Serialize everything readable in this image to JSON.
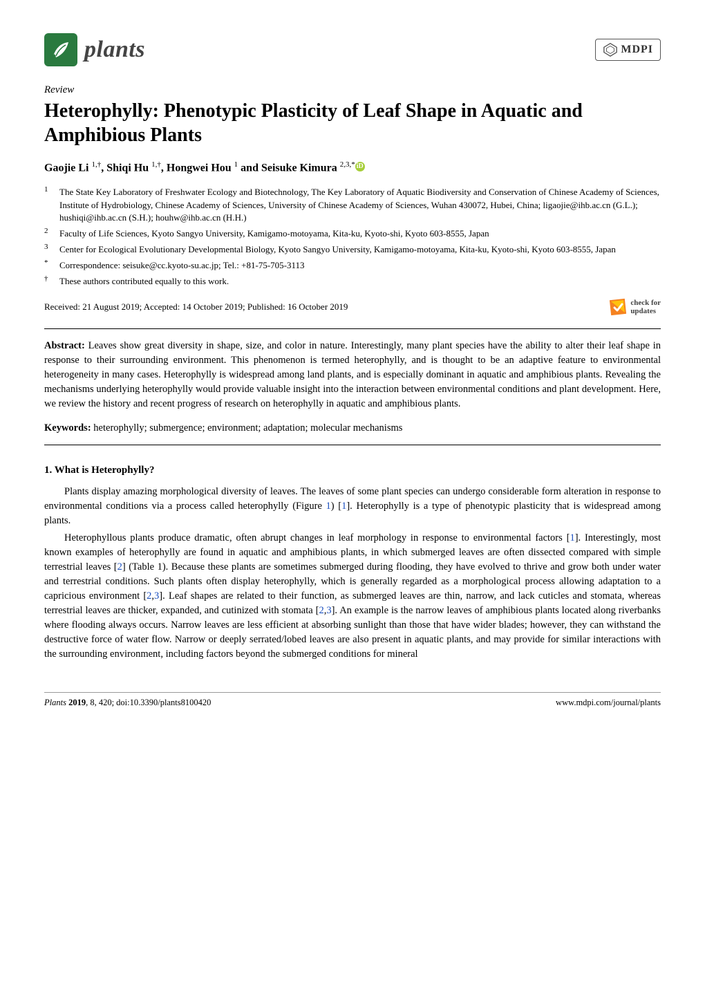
{
  "journal": {
    "name": "plants",
    "logo_bg": "#2a7a3f",
    "logo_fg": "#ffffff"
  },
  "publisher": {
    "name": "MDPI"
  },
  "article_type": "Review",
  "title": "Heterophylly: Phenotypic Plasticity of Leaf Shape in Aquatic and Amphibious Plants",
  "authors_line": "Gaojie Li ",
  "authors": [
    {
      "name": "Gaojie Li",
      "sup": "1,†"
    },
    {
      "name": "Shiqi Hu",
      "sup": "1,†"
    },
    {
      "name": "Hongwei Hou",
      "sup": "1"
    },
    {
      "name": "Seisuke Kimura",
      "sup": "2,3,*",
      "orcid": true
    }
  ],
  "author_joiner": ", ",
  "author_final_joiner": " and ",
  "affiliations": [
    {
      "num": "1",
      "text": "The State Key Laboratory of Freshwater Ecology and Biotechnology, The Key Laboratory of Aquatic Biodiversity and Conservation of Chinese Academy of Sciences, Institute of Hydrobiology, Chinese Academy of Sciences, University of Chinese Academy of Sciences, Wuhan 430072, Hubei, China; ligaojie@ihb.ac.cn (G.L.); hushiqi@ihb.ac.cn (S.H.); houhw@ihb.ac.cn (H.H.)"
    },
    {
      "num": "2",
      "text": "Faculty of Life Sciences, Kyoto Sangyo University, Kamigamo-motoyama, Kita-ku, Kyoto-shi, Kyoto 603-8555, Japan"
    },
    {
      "num": "3",
      "text": "Center for Ecological Evolutionary Developmental Biology, Kyoto Sangyo University, Kamigamo-motoyama, Kita-ku, Kyoto-shi, Kyoto 603-8555, Japan"
    },
    {
      "num": "*",
      "text": "Correspondence: seisuke@cc.kyoto-su.ac.jp; Tel.: +81-75-705-3113"
    },
    {
      "num": "†",
      "text": "These authors contributed equally to this work."
    }
  ],
  "dates": "Received: 21 August 2019; Accepted: 14 October 2019; Published: 16 October 2019",
  "check_updates": {
    "line1": "check for",
    "line2": "updates"
  },
  "abstract": {
    "label": "Abstract:",
    "text": " Leaves show great diversity in shape, size, and color in nature. Interestingly, many plant species have the ability to alter their leaf shape in response to their surrounding environment. This phenomenon is termed heterophylly, and is thought to be an adaptive feature to environmental heterogeneity in many cases. Heterophylly is widespread among land plants, and is especially dominant in aquatic and amphibious plants. Revealing the mechanisms underlying heterophylly would provide valuable insight into the interaction between environmental conditions and plant development. Here, we review the history and recent progress of research on heterophylly in aquatic and amphibious plants."
  },
  "keywords": {
    "label": "Keywords:",
    "text": " heterophylly; submergence; environment; adaptation; molecular mechanisms"
  },
  "section1": {
    "heading": "1. What is Heterophylly?",
    "para1_pre": "Plants display amazing morphological diversity of leaves. The leaves of some plant species can undergo considerable form alteration in response to environmental conditions via a process called heterophylly (Figure ",
    "fig1": "1",
    "para1_mid1": ") [",
    "ref1a": "1",
    "para1_post": "]. Heterophylly is a type of phenotypic plasticity that is widespread among plants.",
    "para2_pre": "Heterophyllous plants produce dramatic, often abrupt changes in leaf morphology in response to environmental factors [",
    "ref1b": "1",
    "para2_s2": "]. Interestingly, most known examples of heterophylly are found in aquatic and amphibious plants, in which submerged leaves are often dissected compared with simple terrestrial leaves [",
    "ref2a": "2",
    "para2_s3": "] (Table 1). Because these plants are sometimes submerged during flooding, they have evolved to thrive and grow both under water and terrestrial conditions. Such plants often display heterophylly, which is generally regarded as a morphological process allowing adaptation to a capricious environment [",
    "ref2b": "2",
    "ref_comma1": ",",
    "ref3a": "3",
    "para2_s4": "]. Leaf shapes are related to their function, as submerged leaves are thin, narrow, and lack cuticles and stomata, whereas terrestrial leaves are thicker, expanded, and cutinized with stomata [",
    "ref2c": "2",
    "ref_comma2": ",",
    "ref3b": "3",
    "para2_s5": "]. An example is the narrow leaves of amphibious plants located along riverbanks where flooding always occurs. Narrow leaves are less efficient at absorbing sunlight than those that have wider blades; however, they can withstand the destructive force of water flow. Narrow or deeply serrated/lobed leaves are also present in aquatic plants, and may provide for similar interactions with the surrounding environment, including factors beyond the submerged conditions for mineral"
  },
  "footer": {
    "left_italic_journal": "Plants ",
    "left_bold_year": "2019",
    "left_rest": ", 8, 420; doi:10.3390/plants8100420",
    "right": "www.mdpi.com/journal/plants"
  },
  "colors": {
    "ref_link": "#1a4fbf",
    "orcid": "#a6ce39",
    "crossref_orange": "#f58220",
    "crossref_yellow": "#ffc20e",
    "crossref_red": "#ed1c24",
    "crossref_blue": "#3eb1c8"
  }
}
